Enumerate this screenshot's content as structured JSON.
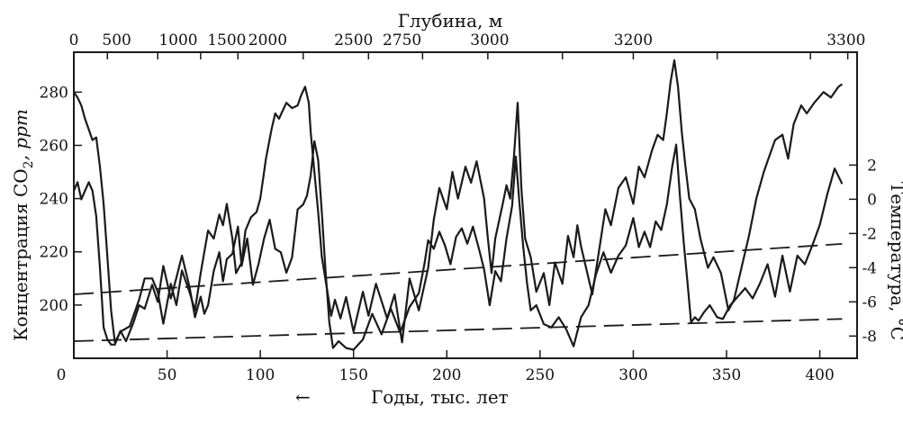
{
  "chart_data": {
    "type": "line",
    "title": "",
    "top_axis": {
      "title": "Глубина, м",
      "tick_labels": [
        "0",
        "500",
        "1000",
        "1500",
        "2000",
        "2500",
        "2750",
        "3000",
        "3200",
        "3300"
      ],
      "tick_ages": [
        0,
        18,
        45,
        68,
        88,
        123,
        158,
        187,
        222,
        262,
        300,
        345,
        395,
        415
      ]
    },
    "bottom_axis": {
      "title": "Годы, тыс. лет",
      "direction_arrow": "←",
      "tick_values": [
        0,
        50,
        100,
        150,
        200,
        250,
        300,
        350,
        400
      ],
      "xlim": [
        0,
        420
      ]
    },
    "left_axis": {
      "title": "Концентрация CO",
      "title_subscript": "2",
      "title_unit": ", ppm",
      "tick_values": [
        200,
        220,
        240,
        260,
        280
      ],
      "ylim": [
        180,
        295
      ]
    },
    "right_axis": {
      "title": "Температура, °С",
      "tick_labels": [
        "2",
        "0",
        "-2",
        "-4",
        "-6",
        "-8"
      ],
      "tick_values": [
        2,
        0,
        -2,
        -4,
        -6,
        -8
      ],
      "ylim": [
        -9.3,
        8.6
      ]
    },
    "series": [
      {
        "axis": "left",
        "x": [
          0,
          2,
          4,
          6,
          8,
          10,
          12,
          14,
          16,
          18,
          20,
          22,
          25,
          30,
          35,
          38,
          42,
          45,
          48,
          52,
          55,
          58,
          62,
          65,
          68,
          70,
          72,
          75,
          78,
          80,
          82,
          85,
          87,
          90,
          92,
          95,
          98,
          100,
          103,
          106,
          108,
          110,
          112,
          114,
          117,
          120,
          122,
          124,
          126,
          127,
          129,
          131,
          133,
          136,
          138,
          140,
          143,
          146,
          150,
          155,
          158,
          162,
          168,
          172,
          176,
          180,
          185,
          190,
          193,
          196,
          200,
          203,
          206,
          210,
          213,
          216,
          220,
          222,
          224,
          226,
          230,
          232,
          234,
          236,
          238,
          240,
          242,
          245,
          248,
          252,
          255,
          258,
          262,
          265,
          268,
          270,
          272,
          274,
          276,
          278,
          282,
          285,
          288,
          292,
          296,
          300,
          303,
          306,
          310,
          313,
          316,
          318,
          320,
          322,
          324,
          326,
          328,
          330,
          333,
          336,
          340,
          343,
          347,
          351,
          354,
          358,
          362,
          366,
          370,
          373,
          376,
          380,
          383,
          386,
          390,
          393,
          397,
          402,
          406,
          410,
          412
        ],
        "values": [
          280,
          278,
          275,
          270,
          266,
          262,
          263,
          252,
          238,
          218,
          198,
          186,
          190,
          192,
          202,
          210,
          210,
          205,
          193,
          208,
          200,
          213,
          205,
          198,
          212,
          220,
          228,
          225,
          234,
          230,
          238,
          225,
          212,
          216,
          228,
          233,
          235,
          240,
          255,
          266,
          272,
          270,
          273,
          276,
          274,
          275,
          279,
          282,
          276,
          265,
          250,
          235,
          218,
          205,
          196,
          202,
          195,
          203,
          190,
          205,
          196,
          208,
          195,
          204,
          186,
          210,
          198,
          214,
          232,
          244,
          236,
          250,
          240,
          252,
          246,
          254,
          240,
          225,
          212,
          225,
          238,
          245,
          240,
          256,
          276,
          244,
          225,
          218,
          205,
          212,
          200,
          216,
          208,
          226,
          218,
          230,
          222,
          216,
          210,
          204,
          222,
          236,
          230,
          244,
          248,
          238,
          252,
          248,
          258,
          264,
          262,
          272,
          284,
          292,
          282,
          265,
          252,
          240,
          236,
          225,
          214,
          218,
          212,
          198,
          202,
          214,
          226,
          240,
          250,
          256,
          262,
          264,
          255,
          268,
          275,
          272,
          276,
          280,
          278,
          282,
          283
        ]
      },
      {
        "axis": "right",
        "x": [
          0,
          2,
          4,
          6,
          8,
          10,
          12,
          14,
          16,
          18,
          20,
          22,
          25,
          28,
          32,
          35,
          38,
          42,
          45,
          48,
          52,
          55,
          58,
          62,
          65,
          68,
          70,
          72,
          75,
          78,
          80,
          82,
          85,
          88,
          90,
          93,
          96,
          99,
          102,
          105,
          108,
          111,
          114,
          117,
          120,
          123,
          125,
          127,
          129,
          131,
          133,
          135,
          137,
          139,
          142,
          146,
          150,
          155,
          160,
          165,
          170,
          175,
          180,
          185,
          188,
          190,
          193,
          196,
          199,
          202,
          205,
          208,
          211,
          214,
          217,
          220,
          223,
          226,
          229,
          232,
          235,
          237,
          239,
          241,
          243,
          245,
          248,
          252,
          256,
          260,
          264,
          268,
          272,
          276,
          280,
          284,
          288,
          292,
          296,
          300,
          303,
          306,
          309,
          312,
          315,
          318,
          321,
          323,
          325,
          327,
          329,
          331,
          333,
          335,
          338,
          341,
          345,
          348,
          352,
          356,
          360,
          364,
          368,
          372,
          376,
          380,
          384,
          388,
          392,
          396,
          400,
          404,
          408,
          412
        ],
        "values": [
          0.5,
          1,
          0,
          0.5,
          1,
          0.5,
          -1,
          -4,
          -7.5,
          -8.2,
          -8.5,
          -8.5,
          -7.7,
          -8.3,
          -7.2,
          -6.2,
          -6.4,
          -5,
          -6,
          -3.9,
          -5.8,
          -4.6,
          -3.3,
          -5.1,
          -6.9,
          -5.7,
          -6.7,
          -6.2,
          -4.2,
          -3.1,
          -4.8,
          -3.5,
          -3.2,
          -1.6,
          -3.9,
          -2.3,
          -5,
          -3.8,
          -2.3,
          -1.2,
          -2.9,
          -3.1,
          -4.3,
          -3.4,
          -0.6,
          -0.3,
          0.2,
          1.4,
          3.4,
          2.3,
          -0.8,
          -4.2,
          -7.2,
          -8.7,
          -8.3,
          -8.7,
          -8.8,
          -8.2,
          -6.7,
          -7.9,
          -6.4,
          -7.8,
          -6.3,
          -5.5,
          -3.8,
          -2.4,
          -2.9,
          -1.9,
          -2.7,
          -3.8,
          -2.2,
          -1.7,
          -2.6,
          -1.6,
          -2.8,
          -4.1,
          -6.2,
          -4.2,
          -4.8,
          -2.3,
          -0.4,
          2.5,
          -0.3,
          -2.8,
          -4.9,
          -6.5,
          -6.2,
          -7.3,
          -7.5,
          -6.9,
          -7.6,
          -8.6,
          -6.9,
          -6.2,
          -4.4,
          -3.1,
          -4.3,
          -3.3,
          -2.7,
          -1.1,
          -2.8,
          -1.9,
          -2.8,
          -1.3,
          -1.8,
          -0.3,
          2,
          3.2,
          0.2,
          -2.5,
          -4.8,
          -7.2,
          -6.9,
          -7.1,
          -6.6,
          -6.2,
          -6.9,
          -7,
          -6.2,
          -5.7,
          -5.2,
          -5.8,
          -4.9,
          -3.8,
          -5.7,
          -3.3,
          -5.4,
          -3.3,
          -3.8,
          -2.7,
          -1.5,
          0.3,
          1.8,
          0.9
        ]
      },
      {
        "axis": "left",
        "style": "dashed",
        "x": [
          0,
          412
        ],
        "values": [
          204,
          223
        ]
      },
      {
        "axis": "right",
        "style": "dashed",
        "x": [
          0,
          412
        ],
        "values": [
          -8.3,
          -7
        ]
      }
    ],
    "grid": false,
    "legend": "none",
    "colors": {
      "line": "#1a1a1a",
      "background": "#ffffff"
    }
  }
}
